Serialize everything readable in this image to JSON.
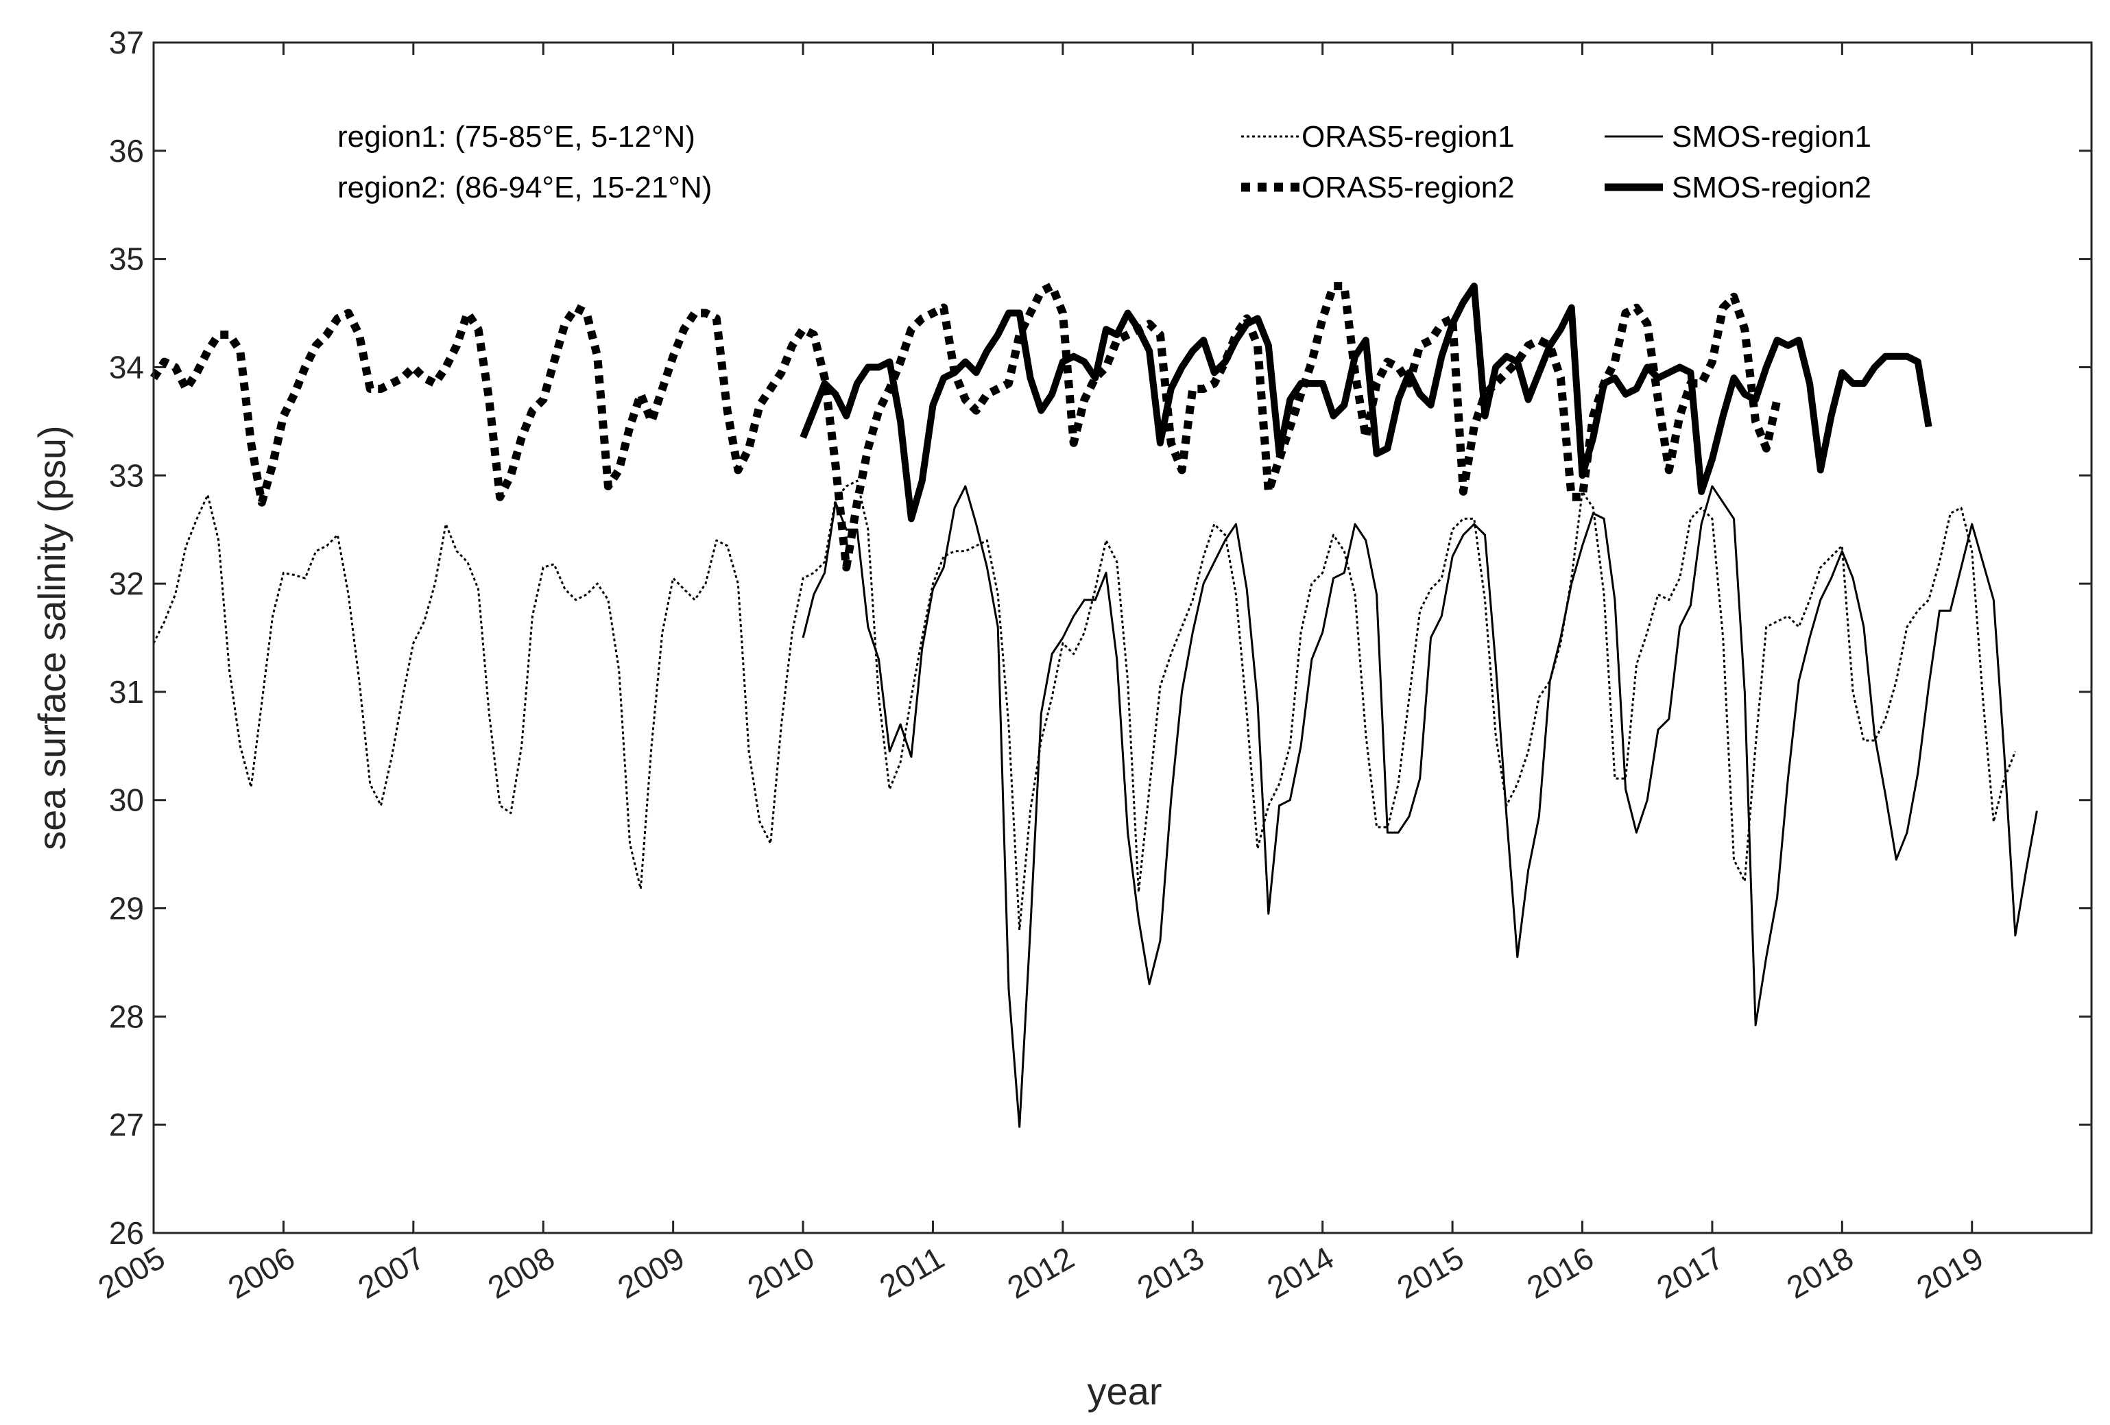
{
  "chart_data": {
    "type": "line",
    "xlabel": "year",
    "ylabel": "sea surface salinity (psu)",
    "xlim": [
      2005,
      2019.92
    ],
    "ylim": [
      26,
      37
    ],
    "x_ticks": [
      "2005",
      "2006",
      "2007",
      "2008",
      "2009",
      "2010",
      "2011",
      "2012",
      "2013",
      "2014",
      "2015",
      "2016",
      "2017",
      "2018",
      "2019"
    ],
    "y_ticks": [
      "26",
      "27",
      "28",
      "29",
      "30",
      "31",
      "32",
      "33",
      "34",
      "35",
      "36",
      "37"
    ],
    "annotations": [
      "region1: (75-85°E, 5-12°N)",
      "region2: (86-94°E, 15-21°N)"
    ],
    "legend_position": "top-right",
    "series": [
      {
        "name": "ORAS5-region1",
        "style": "dotted-thin",
        "start": 2005.0,
        "step": 0.0833333,
        "values": [
          31.45,
          31.65,
          31.9,
          32.35,
          32.6,
          32.82,
          32.4,
          31.2,
          30.5,
          30.12,
          30.9,
          31.7,
          32.1,
          32.08,
          32.05,
          32.3,
          32.35,
          32.45,
          31.9,
          31.1,
          30.15,
          29.95,
          30.4,
          30.95,
          31.45,
          31.65,
          32.0,
          32.55,
          32.3,
          32.2,
          31.95,
          30.8,
          29.95,
          29.88,
          30.5,
          31.7,
          32.15,
          32.18,
          31.95,
          31.85,
          31.9,
          32.0,
          31.85,
          31.2,
          29.6,
          29.18,
          30.5,
          31.55,
          32.05,
          31.95,
          31.85,
          32.0,
          32.4,
          32.35,
          32.0,
          30.45,
          29.8,
          29.6,
          30.7,
          31.55,
          32.05,
          32.1,
          32.2,
          32.78,
          32.9,
          32.95,
          32.5,
          30.95,
          30.1,
          30.35,
          30.95,
          31.5,
          32.0,
          32.25,
          32.3,
          32.3,
          32.35,
          32.4,
          31.9,
          30.7,
          28.8,
          29.9,
          30.55,
          30.95,
          31.45,
          31.35,
          31.55,
          31.95,
          32.4,
          32.2,
          31.1,
          29.15,
          30.1,
          31.05,
          31.35,
          31.6,
          31.85,
          32.25,
          32.55,
          32.45,
          31.9,
          30.8,
          29.55,
          29.95,
          30.15,
          30.5,
          31.55,
          32.0,
          32.1,
          32.45,
          32.3,
          31.9,
          30.6,
          29.75,
          29.75,
          30.15,
          30.95,
          31.75,
          31.95,
          32.05,
          32.5,
          32.6,
          32.6,
          31.85,
          30.6,
          29.95,
          30.15,
          30.45,
          30.95,
          31.1,
          31.45,
          32.05,
          32.85,
          32.7,
          31.9,
          30.2,
          30.2,
          31.25,
          31.55,
          31.9,
          31.85,
          32.05,
          32.6,
          32.7,
          32.6,
          31.5,
          29.45,
          29.25,
          30.5,
          31.6,
          31.65,
          31.7,
          31.6,
          31.85,
          32.15,
          32.25,
          32.35,
          31.0,
          30.55,
          30.55,
          30.75,
          31.1,
          31.6,
          31.75,
          31.85,
          32.2,
          32.65,
          32.7,
          32.3,
          30.95,
          29.8,
          30.2,
          30.45
        ]
      },
      {
        "name": "SMOS-region1",
        "style": "solid-thin",
        "start": 2010.0,
        "step": 0.0833333,
        "values": [
          31.5,
          31.9,
          32.1,
          32.75,
          32.5,
          32.5,
          31.6,
          31.3,
          30.45,
          30.7,
          30.4,
          31.4,
          31.95,
          32.15,
          32.7,
          32.9,
          32.55,
          32.15,
          31.6,
          28.25,
          26.98,
          28.8,
          30.8,
          31.35,
          31.5,
          31.7,
          31.85,
          31.85,
          32.1,
          31.3,
          29.7,
          28.9,
          28.3,
          28.7,
          30.0,
          31.0,
          31.55,
          32.0,
          32.2,
          32.4,
          32.55,
          31.95,
          30.9,
          28.95,
          29.95,
          30.0,
          30.5,
          31.3,
          31.55,
          32.05,
          32.1,
          32.55,
          32.4,
          31.9,
          29.7,
          29.7,
          29.85,
          30.2,
          31.5,
          31.7,
          32.25,
          32.45,
          32.55,
          32.45,
          31.25,
          29.85,
          28.55,
          29.35,
          29.85,
          31.1,
          31.5,
          32.0,
          32.35,
          32.65,
          32.6,
          31.85,
          30.1,
          29.7,
          30.0,
          30.65,
          30.75,
          31.6,
          31.8,
          32.55,
          32.9,
          32.75,
          32.6,
          31.0,
          27.92,
          28.55,
          29.1,
          30.2,
          31.1,
          31.5,
          31.85,
          32.05,
          32.3,
          32.05,
          31.6,
          30.6,
          30.05,
          29.45,
          29.7,
          30.25,
          31.05,
          31.75,
          31.75,
          32.15,
          32.55,
          32.2,
          31.85,
          30.4,
          28.75,
          29.35,
          29.9
        ]
      },
      {
        "name": "ORAS5-region2",
        "style": "dotted-thick",
        "start": 2005.0,
        "step": 0.0833333,
        "values": [
          33.9,
          34.05,
          34.0,
          33.8,
          33.95,
          34.15,
          34.3,
          34.3,
          34.15,
          33.3,
          32.75,
          33.1,
          33.55,
          33.75,
          34.0,
          34.2,
          34.3,
          34.45,
          34.5,
          34.3,
          33.8,
          33.8,
          33.85,
          33.9,
          34.0,
          33.9,
          33.85,
          34.0,
          34.2,
          34.5,
          34.35,
          33.7,
          32.8,
          33.0,
          33.35,
          33.6,
          33.7,
          34.05,
          34.4,
          34.55,
          34.5,
          34.1,
          32.9,
          33.05,
          33.45,
          33.75,
          33.5,
          33.8,
          34.1,
          34.35,
          34.5,
          34.5,
          34.45,
          33.6,
          33.05,
          33.25,
          33.65,
          33.8,
          33.95,
          34.2,
          34.35,
          34.3,
          33.9,
          33.1,
          32.15,
          32.75,
          33.25,
          33.6,
          33.8,
          34.05,
          34.35,
          34.45,
          34.5,
          34.55,
          33.95,
          33.7,
          33.6,
          33.75,
          33.8,
          33.85,
          34.3,
          34.5,
          34.7,
          34.75,
          34.5,
          33.3,
          33.7,
          33.9,
          34.0,
          34.25,
          34.3,
          34.35,
          34.4,
          34.3,
          33.3,
          33.05,
          33.8,
          33.8,
          33.85,
          34.05,
          34.3,
          34.45,
          34.2,
          32.85,
          33.15,
          33.45,
          33.75,
          34.05,
          34.45,
          34.75,
          34.75,
          33.95,
          33.35,
          33.85,
          34.05,
          34.0,
          33.85,
          34.2,
          34.25,
          34.4,
          34.45,
          32.85,
          33.45,
          33.75,
          33.85,
          33.95,
          34.05,
          34.2,
          34.25,
          34.2,
          33.9,
          32.8,
          32.8,
          33.55,
          33.85,
          34.05,
          34.5,
          34.55,
          34.4,
          33.7,
          33.05,
          33.55,
          33.85,
          33.85,
          34.05,
          34.55,
          34.65,
          34.35,
          33.5,
          33.25,
          33.7
        ]
      },
      {
        "name": "SMOS-region2",
        "style": "solid-thick",
        "start": 2010.0,
        "step": 0.0833333,
        "values": [
          33.35,
          33.6,
          33.85,
          33.75,
          33.55,
          33.85,
          34.0,
          34.0,
          34.05,
          33.5,
          32.6,
          32.95,
          33.65,
          33.9,
          33.95,
          34.05,
          33.95,
          34.15,
          34.3,
          34.5,
          34.5,
          33.9,
          33.6,
          33.75,
          34.05,
          34.1,
          34.05,
          33.9,
          34.35,
          34.3,
          34.5,
          34.35,
          34.15,
          33.3,
          33.8,
          34.0,
          34.15,
          34.25,
          33.95,
          34.05,
          34.25,
          34.4,
          34.45,
          34.2,
          33.2,
          33.7,
          33.85,
          33.85,
          33.85,
          33.55,
          33.65,
          34.1,
          34.25,
          33.2,
          33.25,
          33.7,
          33.95,
          33.75,
          33.65,
          34.1,
          34.4,
          34.6,
          34.75,
          33.55,
          34.0,
          34.1,
          34.05,
          33.7,
          33.95,
          34.2,
          34.35,
          34.55,
          33.0,
          33.35,
          33.85,
          33.9,
          33.75,
          33.8,
          34.0,
          33.9,
          33.95,
          34.0,
          33.95,
          32.85,
          33.15,
          33.55,
          33.9,
          33.75,
          33.7,
          34.0,
          34.25,
          34.2,
          34.25,
          33.85,
          33.05,
          33.55,
          33.95,
          33.85,
          33.85,
          34.0,
          34.1,
          34.1,
          34.1,
          34.05,
          33.45
        ]
      }
    ]
  }
}
